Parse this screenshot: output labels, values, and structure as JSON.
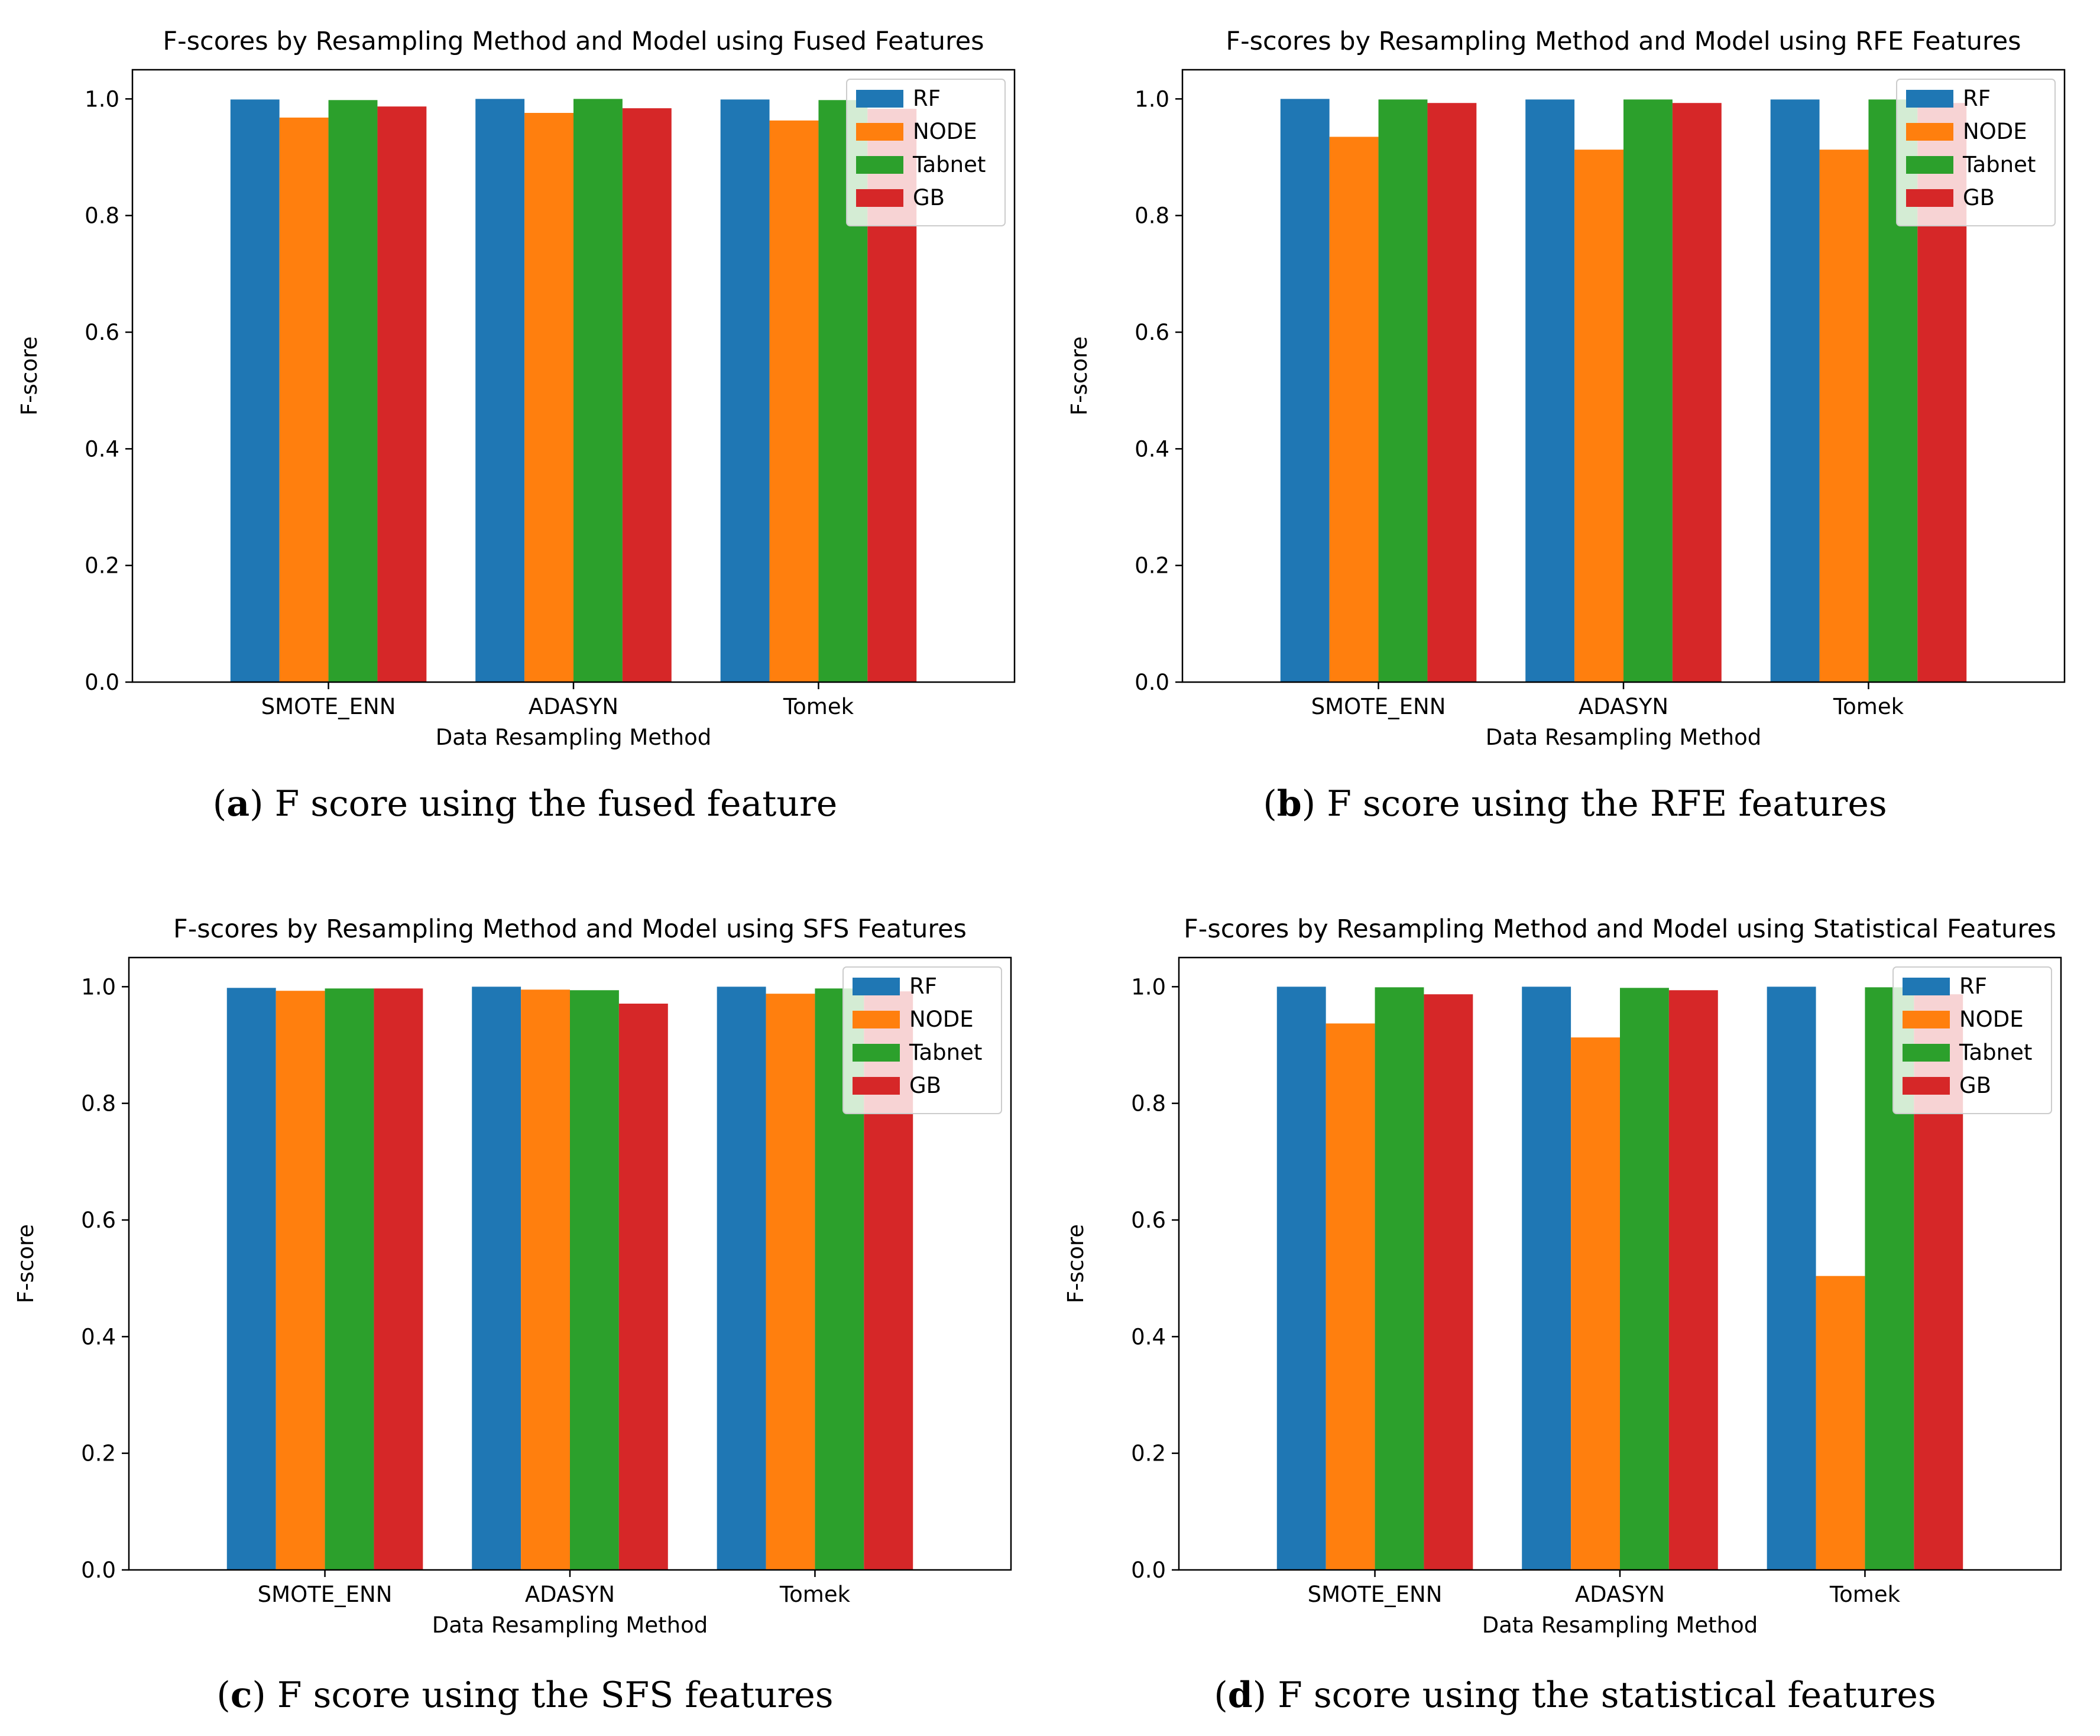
{
  "figure": {
    "panels": [
      {
        "label": "a",
        "caption": "F score using the fused feature"
      },
      {
        "label": "b",
        "caption": "F score using the RFE features"
      },
      {
        "label": "c",
        "caption": "F score using the SFS features"
      },
      {
        "label": "d",
        "caption": "F score using the statistical features"
      }
    ]
  },
  "colors": {
    "RF": "#1f77b4",
    "NODE": "#ff7f0e",
    "Tabnet": "#2ca02c",
    "GB": "#d62728"
  },
  "chart_data": [
    {
      "type": "bar",
      "title": "F-scores by Resampling Method and Model using Fused Features",
      "xlabel": "Data Resampling Method",
      "ylabel": "F-score",
      "ylim": [
        0,
        1.05
      ],
      "yticks": [
        "0.0",
        "0.2",
        "0.4",
        "0.6",
        "0.8",
        "1.0"
      ],
      "legend_position": "top-right",
      "grid": false,
      "categories": [
        "SMOTE_ENN",
        "ADASYN",
        "Tomek"
      ],
      "series": [
        {
          "name": "RF",
          "values": [
            0.999,
            1.0,
            0.999
          ]
        },
        {
          "name": "NODE",
          "values": [
            0.968,
            0.976,
            0.963
          ]
        },
        {
          "name": "Tabnet",
          "values": [
            0.998,
            1.0,
            0.998
          ]
        },
        {
          "name": "GB",
          "values": [
            0.987,
            0.984,
            0.983
          ]
        }
      ]
    },
    {
      "type": "bar",
      "title": "F-scores by Resampling Method and Model using RFE Features",
      "xlabel": "Data Resampling Method",
      "ylabel": "F-score",
      "ylim": [
        0,
        1.05
      ],
      "yticks": [
        "0.0",
        "0.2",
        "0.4",
        "0.6",
        "0.8",
        "1.0"
      ],
      "legend_position": "top-right",
      "grid": false,
      "categories": [
        "SMOTE_ENN",
        "ADASYN",
        "Tomek"
      ],
      "series": [
        {
          "name": "RF",
          "values": [
            1.0,
            0.999,
            0.999
          ]
        },
        {
          "name": "NODE",
          "values": [
            0.935,
            0.913,
            0.913
          ]
        },
        {
          "name": "Tabnet",
          "values": [
            0.999,
            0.999,
            0.999
          ]
        },
        {
          "name": "GB",
          "values": [
            0.993,
            0.993,
            0.993
          ]
        }
      ]
    },
    {
      "type": "bar",
      "title": "F-scores by Resampling Method and Model using SFS Features",
      "xlabel": "Data Resampling Method",
      "ylabel": "F-score",
      "ylim": [
        0,
        1.05
      ],
      "yticks": [
        "0.0",
        "0.2",
        "0.4",
        "0.6",
        "0.8",
        "1.0"
      ],
      "legend_position": "top-right",
      "grid": false,
      "categories": [
        "SMOTE_ENN",
        "ADASYN",
        "Tomek"
      ],
      "series": [
        {
          "name": "RF",
          "values": [
            0.998,
            1.0,
            1.0
          ]
        },
        {
          "name": "NODE",
          "values": [
            0.993,
            0.995,
            0.988
          ]
        },
        {
          "name": "Tabnet",
          "values": [
            0.997,
            0.994,
            0.997
          ]
        },
        {
          "name": "GB",
          "values": [
            0.997,
            0.971,
            0.992
          ]
        }
      ]
    },
    {
      "type": "bar",
      "title": "F-scores by Resampling Method and Model using Statistical Features",
      "xlabel": "Data Resampling Method",
      "ylabel": "F-score",
      "ylim": [
        0,
        1.05
      ],
      "yticks": [
        "0.0",
        "0.2",
        "0.4",
        "0.6",
        "0.8",
        "1.0"
      ],
      "legend_position": "top-right",
      "grid": false,
      "categories": [
        "SMOTE_ENN",
        "ADASYN",
        "Tomek"
      ],
      "series": [
        {
          "name": "RF",
          "values": [
            1.0,
            1.0,
            1.0
          ]
        },
        {
          "name": "NODE",
          "values": [
            0.937,
            0.913,
            0.504
          ]
        },
        {
          "name": "Tabnet",
          "values": [
            0.999,
            0.998,
            0.999
          ]
        },
        {
          "name": "GB",
          "values": [
            0.987,
            0.994,
            0.987
          ]
        }
      ]
    }
  ]
}
